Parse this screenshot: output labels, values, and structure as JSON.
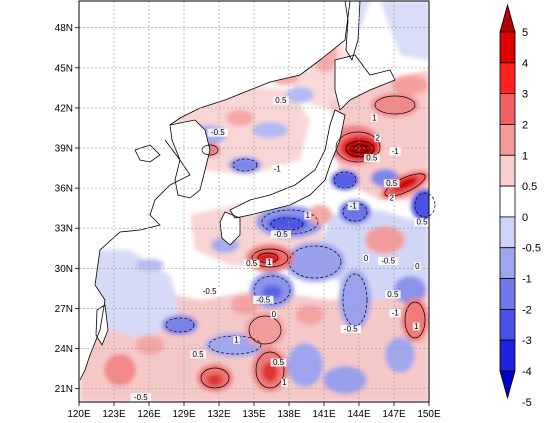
{
  "map": {
    "lon_labels": [
      "120E",
      "123E",
      "126E",
      "129E",
      "132E",
      "135E",
      "138E",
      "141E",
      "144E",
      "147E",
      "150E"
    ],
    "lat_labels": [
      "21N",
      "24N",
      "27N",
      "30N",
      "33N",
      "36N",
      "39N",
      "42N",
      "45N",
      "48N"
    ],
    "lon_range": [
      120,
      150
    ],
    "lat_range": [
      20,
      50
    ],
    "grid": true,
    "contour_labels": [
      {
        "text": "0.5",
        "lon": 134.8,
        "lat": 30.2
      },
      {
        "text": "-0.5",
        "lon": 137.3,
        "lat": 32.4
      },
      {
        "text": "-0.5",
        "lon": 131.2,
        "lat": 28.1
      },
      {
        "text": "-0.5",
        "lon": 135.8,
        "lat": 27.5
      },
      {
        "text": "1",
        "lon": 136.3,
        "lat": 30.3
      },
      {
        "text": "-1",
        "lon": 143.5,
        "lat": 34.5
      },
      {
        "text": "0.5",
        "lon": 146.8,
        "lat": 36.2
      },
      {
        "text": "-1",
        "lon": 147.1,
        "lat": 38.6
      },
      {
        "text": "0.5",
        "lon": 145.1,
        "lat": 38.1
      },
      {
        "text": "1",
        "lon": 145.3,
        "lat": 41.1
      },
      {
        "text": "2",
        "lon": 145.6,
        "lat": 39.6
      },
      {
        "text": "2",
        "lon": 146.8,
        "lat": 35.1
      },
      {
        "text": "-0.5",
        "lon": 146.5,
        "lat": 30.4
      },
      {
        "text": "0.5",
        "lon": 149.4,
        "lat": 33.3
      },
      {
        "text": "-0.5",
        "lon": 143.3,
        "lat": 25.3
      },
      {
        "text": "0.5",
        "lon": 146.9,
        "lat": 27.9
      },
      {
        "text": "-1",
        "lon": 147.1,
        "lat": 26.5
      },
      {
        "text": "1",
        "lon": 148.9,
        "lat": 25.5
      },
      {
        "text": "0.5",
        "lon": 130.2,
        "lat": 23.4
      },
      {
        "text": "1",
        "lon": 133.5,
        "lat": 24.5
      },
      {
        "text": "1",
        "lon": 137.6,
        "lat": 21.3
      },
      {
        "text": "-0.5",
        "lon": 125.3,
        "lat": 20.2
      },
      {
        "text": "0.5",
        "lon": 137.1,
        "lat": 22.8
      },
      {
        "text": "1",
        "lon": 139.6,
        "lat": 33.8
      },
      {
        "text": "-0.5",
        "lon": 131.9,
        "lat": 40.0
      },
      {
        "text": "0.5",
        "lon": 137.3,
        "lat": 42.4
      },
      {
        "text": "-1",
        "lon": 137.0,
        "lat": 37.3
      },
      {
        "text": "0",
        "lon": 144.6,
        "lat": 30.6
      },
      {
        "text": "0",
        "lon": 136.7,
        "lat": 26.4
      },
      {
        "text": "0",
        "lon": 149.0,
        "lat": 30.0
      }
    ]
  },
  "colorbar": {
    "labels": [
      "5",
      "4",
      "3",
      "2",
      "1",
      "0.5",
      "0",
      "-0.5",
      "-1",
      "-2",
      "-3",
      "-4",
      "-5"
    ],
    "colors": [
      "#b40000",
      "#e00000",
      "#ff2020",
      "#f06060",
      "#f59a9a",
      "#fad0d0",
      "#ffffff",
      "#d0d4fa",
      "#9ea6ef",
      "#7078ea",
      "#4a50e8",
      "#2022e0",
      "#0000c8"
    ]
  }
}
